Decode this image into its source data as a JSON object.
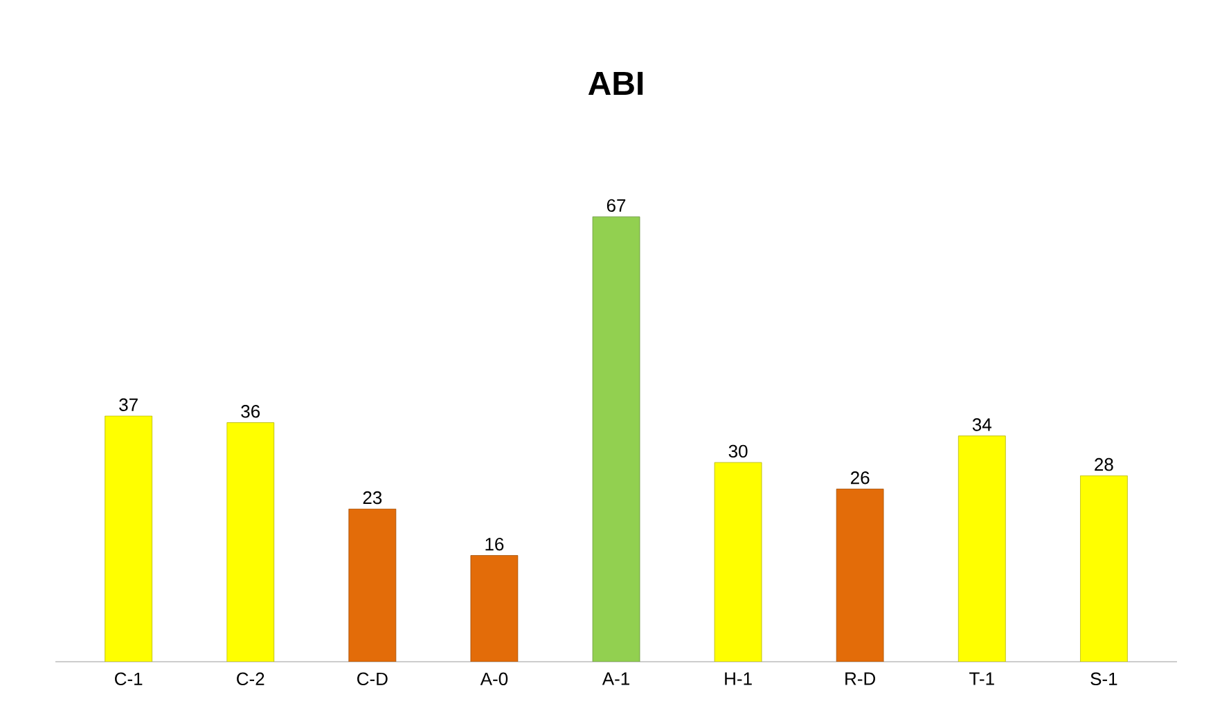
{
  "chart_data": {
    "type": "bar",
    "title": "ABI",
    "categories": [
      "C-1",
      "C-2",
      "C-D",
      "A-0",
      "A-1",
      "H-1",
      "R-D",
      "T-1",
      "S-1"
    ],
    "values": [
      37,
      36,
      23,
      16,
      67,
      30,
      26,
      34,
      28
    ],
    "colors": [
      "#ffff00",
      "#ffff00",
      "#e36c09",
      "#e36c09",
      "#92d050",
      "#ffff00",
      "#e36c09",
      "#ffff00",
      "#ffff00"
    ],
    "data_labels": true
  }
}
